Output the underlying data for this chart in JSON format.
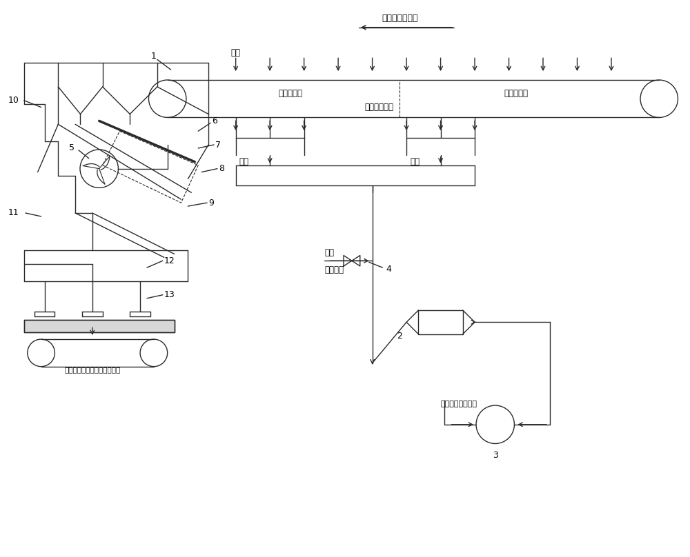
{
  "bg_color": "#ffffff",
  "line_color": "#2a2a2a",
  "labels": {
    "sintering_direction": "烧结机运行方向",
    "air_top": "空气",
    "cooling_section": "机上冷却段",
    "sintering_section": "机上烧结段",
    "middle_part": "烧结机的中部",
    "waste_gas": "废气",
    "flue_gas": "烟气",
    "mixed_gas": "混合气体",
    "air_valve": "空气",
    "outlet_belt": "去往环冷机下方的出料胶带机",
    "desulfur": "去往脱硫脱硝系统",
    "n1": "1",
    "n2": "2",
    "n3": "3",
    "n4": "4",
    "n5": "5",
    "n6": "6",
    "n7": "7",
    "n8": "8",
    "n9": "9",
    "n10": "10",
    "n11": "11",
    "n12": "12",
    "n13": "13"
  }
}
